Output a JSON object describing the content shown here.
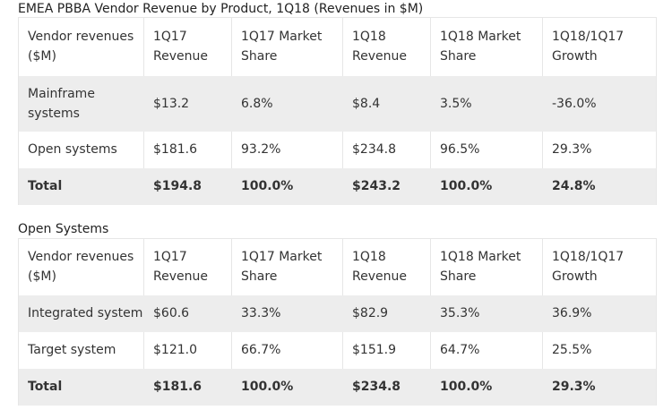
{
  "table1": {
    "caption": "EMEA PBBA Vendor Revenue by Product, 1Q18 (Revenues in $M)",
    "headers": [
      "Vendor revenues ($M)",
      "1Q17 Revenue",
      "1Q17 Market Share",
      "1Q18 Revenue",
      "1Q18 Market Share",
      "1Q18/1Q17 Growth"
    ],
    "rows": [
      [
        "Mainframe systems",
        "$13.2",
        "6.8%",
        "$8.4",
        "3.5%",
        "-36.0%"
      ],
      [
        "Open systems",
        "$181.6",
        "93.2%",
        "$234.8",
        "96.5%",
        "29.3%"
      ],
      [
        "Total",
        "$194.8",
        "100.0%",
        "$243.2",
        "100.0%",
        "24.8%"
      ]
    ]
  },
  "table2": {
    "caption": "Open Systems",
    "headers": [
      "Vendor revenues ($M)",
      "1Q17 Revenue",
      "1Q17 Market Share",
      "1Q18 Revenue",
      "1Q18 Market Share",
      "1Q18/1Q17 Growth"
    ],
    "rows": [
      [
        "Integrated system",
        "$60.6",
        "33.3%",
        "$82.9",
        "35.3%",
        "36.9%"
      ],
      [
        "Target system",
        "$121.0",
        "66.7%",
        "$151.9",
        "64.7%",
        "25.5%"
      ],
      [
        "Total",
        "$181.6",
        "100.0%",
        "$234.8",
        "100.0%",
        "29.3%"
      ]
    ]
  }
}
